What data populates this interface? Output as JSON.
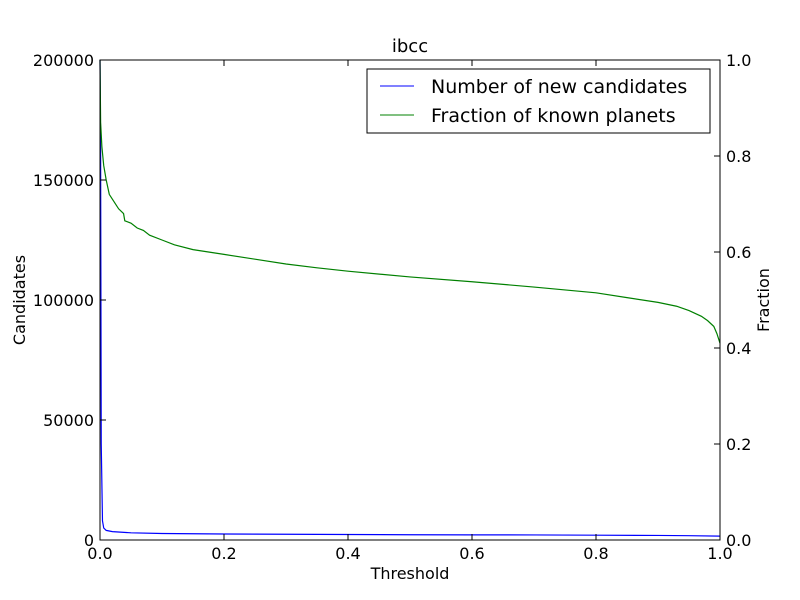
{
  "chart_data": {
    "type": "line",
    "title": "ibcc",
    "xlabel": "Threshold",
    "ylabel_left": "Candidates",
    "ylabel_right": "Fraction",
    "xlim": [
      0,
      1
    ],
    "ylim_left": [
      0,
      200000
    ],
    "ylim_right": [
      0,
      1
    ],
    "x_ticks": [
      "0.0",
      "0.2",
      "0.4",
      "0.6",
      "0.8",
      "1.0"
    ],
    "y_left_ticks": [
      "0",
      "50000",
      "100000",
      "150000",
      "200000"
    ],
    "y_right_ticks": [
      "0.0",
      "0.2",
      "0.4",
      "0.6",
      "0.8",
      "1.0"
    ],
    "grid": false,
    "legend_position": "top-right",
    "colors": {
      "left_axis": "#0000ff",
      "right_axis": "#008000"
    },
    "series": [
      {
        "name": "Number of new candidates",
        "axis": "left",
        "color": "#0000ff",
        "x": [
          0.0,
          0.001,
          0.002,
          0.004,
          0.006,
          0.01,
          0.02,
          0.05,
          0.1,
          0.2,
          0.3,
          0.4,
          0.5,
          0.6,
          0.7,
          0.8,
          0.9,
          0.95,
          1.0
        ],
        "y": [
          200000,
          160000,
          40000,
          8000,
          5000,
          4000,
          3500,
          3000,
          2700,
          2500,
          2400,
          2300,
          2200,
          2150,
          2100,
          2000,
          1900,
          1800,
          1600
        ]
      },
      {
        "name": "Fraction of known planets",
        "axis": "right",
        "color": "#008000",
        "x": [
          0.0,
          0.001,
          0.003,
          0.006,
          0.01,
          0.015,
          0.02,
          0.03,
          0.038,
          0.04,
          0.05,
          0.06,
          0.07,
          0.08,
          0.1,
          0.12,
          0.15,
          0.2,
          0.25,
          0.3,
          0.35,
          0.4,
          0.5,
          0.6,
          0.7,
          0.8,
          0.85,
          0.9,
          0.93,
          0.95,
          0.97,
          0.98,
          0.99,
          0.995,
          1.0
        ],
        "y": [
          1.0,
          0.87,
          0.82,
          0.78,
          0.75,
          0.72,
          0.71,
          0.69,
          0.68,
          0.665,
          0.66,
          0.65,
          0.645,
          0.635,
          0.625,
          0.615,
          0.605,
          0.595,
          0.585,
          0.575,
          0.567,
          0.56,
          0.548,
          0.538,
          0.527,
          0.515,
          0.505,
          0.495,
          0.487,
          0.478,
          0.466,
          0.457,
          0.445,
          0.43,
          0.41
        ]
      }
    ]
  }
}
